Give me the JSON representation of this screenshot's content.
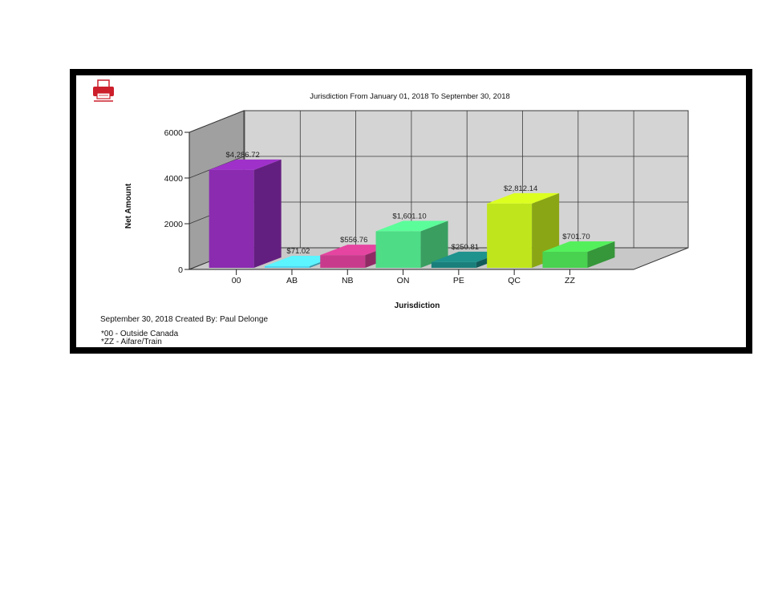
{
  "colors": {
    "plot_bg": "#d4d4d4",
    "grid": "#3a3a3a",
    "frame": "#000000",
    "print_icon": "#cc1f2b"
  },
  "print_button": {
    "icon": "print-icon"
  },
  "footer": {
    "created": "September 30, 2018 Created By: Paul Delonge",
    "notes": [
      "*00 - Outside Canada",
      "*ZZ - Aifare/Train"
    ]
  },
  "chart_data": {
    "type": "bar",
    "title": "Jurisdiction From January 01, 2018 To September 30, 2018",
    "xlabel": "Jurisdiction",
    "ylabel": "Net Amount",
    "categories": [
      "00",
      "AB",
      "NB",
      "ON",
      "PE",
      "QC",
      "ZZ"
    ],
    "values": [
      4286.72,
      71.02,
      556.76,
      1601.1,
      250.81,
      2812.14,
      701.7
    ],
    "data_labels": [
      "$4,286.72",
      "$71.02",
      "$556.76",
      "$1,601.10",
      "$250.81",
      "$2,812.14",
      "$701.70"
    ],
    "bar_colors": [
      "#8a2bb0",
      "#4fd4ee",
      "#c83b8c",
      "#4fdc86",
      "#1a7f7b",
      "#bfe61c",
      "#49d150"
    ],
    "ylim": [
      0,
      6000
    ],
    "yticks": [
      0,
      2000,
      4000,
      6000
    ],
    "grid": true,
    "style": "3d"
  }
}
